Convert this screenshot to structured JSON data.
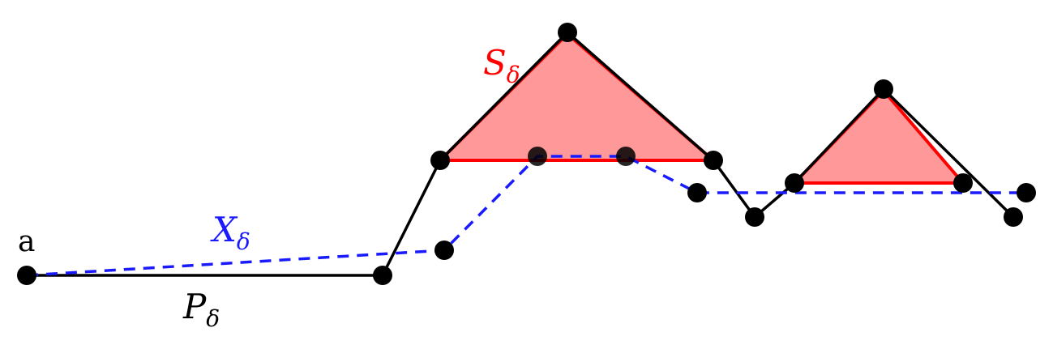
{
  "labels": {
    "start": "a",
    "path_p": {
      "main": "P",
      "sub": "δ"
    },
    "path_x": {
      "main": "X",
      "sub": "δ"
    },
    "set_s": {
      "main": "S",
      "sub": "δ"
    }
  },
  "colors": {
    "path_p": "#000000",
    "path_x": "#1a1aff",
    "set_s_stroke": "#ff0000",
    "set_s_fill": "#ff9999",
    "vertex": "#000000"
  }
}
